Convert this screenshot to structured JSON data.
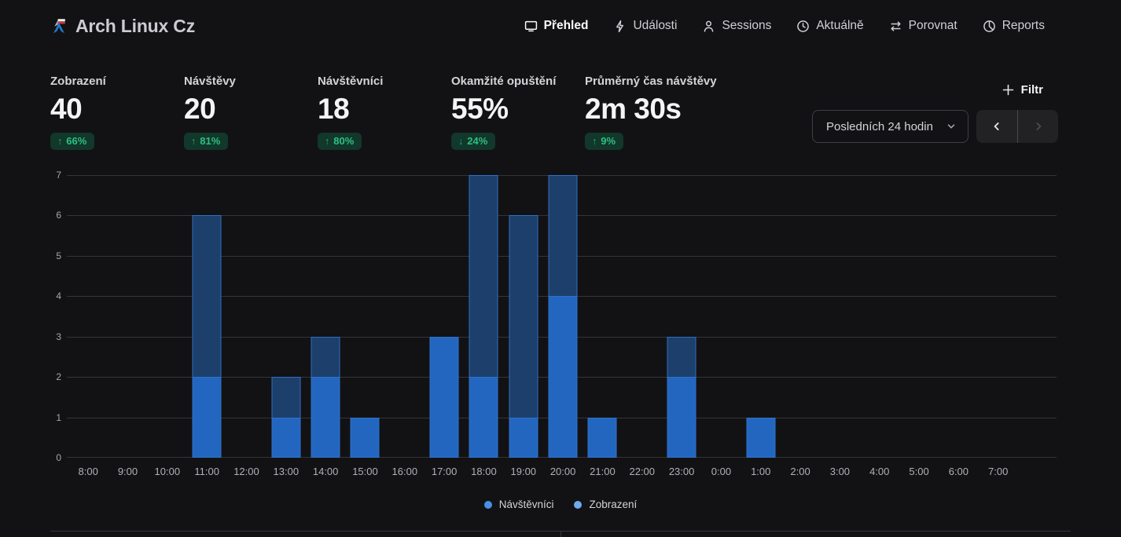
{
  "app": {
    "title": "Arch Linux Cz"
  },
  "nav": {
    "items": [
      {
        "label": "Přehled",
        "icon": "monitor",
        "active": true
      },
      {
        "label": "Události",
        "icon": "lightning",
        "active": false
      },
      {
        "label": "Sessions",
        "icon": "user",
        "active": false
      },
      {
        "label": "Aktuálně",
        "icon": "clock",
        "active": false
      },
      {
        "label": "Porovnat",
        "icon": "compare-arrows",
        "active": false
      },
      {
        "label": "Reports",
        "icon": "pie-chart",
        "active": false
      }
    ]
  },
  "metrics": [
    {
      "label": "Zobrazení",
      "value": "40",
      "arrow": "↑",
      "change": "66%"
    },
    {
      "label": "Návštěvy",
      "value": "20",
      "arrow": "↑",
      "change": "81%"
    },
    {
      "label": "Návštěvníci",
      "value": "18",
      "arrow": "↑",
      "change": "80%"
    },
    {
      "label": "Okamžité opuštění",
      "value": "55%",
      "arrow": "↓",
      "change": "24%"
    },
    {
      "label": "Průměrný čas návštěvy",
      "value": "2m 30s",
      "arrow": "↑",
      "change": "9%"
    }
  ],
  "controls": {
    "filter_label": "Filtr",
    "date_range": "Posledních 24 hodin"
  },
  "chart_data": {
    "type": "bar",
    "title": "",
    "xlabel": "",
    "ylabel": "",
    "x": [
      "8:00",
      "9:00",
      "10:00",
      "11:00",
      "12:00",
      "13:00",
      "14:00",
      "15:00",
      "16:00",
      "17:00",
      "18:00",
      "19:00",
      "20:00",
      "21:00",
      "22:00",
      "23:00",
      "0:00",
      "1:00",
      "2:00",
      "3:00",
      "4:00",
      "5:00",
      "6:00",
      "7:00"
    ],
    "series": [
      {
        "name": "Zobrazení",
        "values": [
          0,
          0,
          0,
          6,
          0,
          2,
          3,
          1,
          0,
          3,
          7,
          6,
          7,
          1,
          0,
          3,
          0,
          1,
          0,
          0,
          0,
          0,
          0,
          0
        ],
        "fill": "#1d3f6b",
        "border": "#2e6fc2"
      },
      {
        "name": "Návštěvníci",
        "values": [
          0,
          0,
          0,
          2,
          0,
          1,
          2,
          1,
          0,
          3,
          2,
          1,
          4,
          1,
          0,
          2,
          0,
          1,
          0,
          0,
          0,
          0,
          0,
          0
        ],
        "fill": "#2366c0",
        "border": "#2e72cc"
      }
    ],
    "ylim": [
      0,
      7
    ],
    "yticks": [
      0,
      1,
      2,
      3,
      4,
      5,
      6,
      7
    ],
    "grid": true,
    "legend_position": "bottom"
  },
  "legend": [
    {
      "label": "Návštěvníci",
      "color": "#4790e6"
    },
    {
      "label": "Zobrazení",
      "color": "#71a9ef"
    }
  ],
  "colors": {
    "background": "#121214",
    "badge_bg": "#11382a",
    "badge_text": "#2fbf84",
    "bar_views": "#1d3f6b",
    "bar_visitors": "#2366c0"
  }
}
